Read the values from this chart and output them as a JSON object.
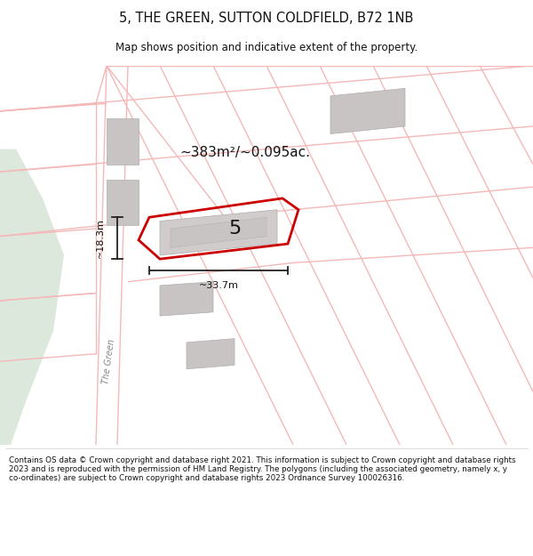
{
  "title_line1": "5, THE GREEN, SUTTON COLDFIELD, B72 1NB",
  "title_line2": "Map shows position and indicative extent of the property.",
  "area_label": "~383m²/~0.095ac.",
  "number_label": "5",
  "dim_width": "~33.7m",
  "dim_height": "~18.3m",
  "road_label": "The Green",
  "footer": "Contains OS data © Crown copyright and database right 2021. This information is subject to Crown copyright and database rights 2023 and is reproduced with the permission of HM Land Registry. The polygons (including the associated geometry, namely x, y co-ordinates) are subject to Crown copyright and database rights 2023 Ordnance Survey 100026316.",
  "bg_white": "#ffffff",
  "map_bg": "#f8f4f4",
  "green_color": "#dde8dd",
  "road_color": "#f5b8b8",
  "bldg_color": "#c8c4c4",
  "bldg_edge": "#b0acac",
  "red_color": "#cc0000",
  "dim_color": "#222222",
  "road_label_color": "#888888"
}
